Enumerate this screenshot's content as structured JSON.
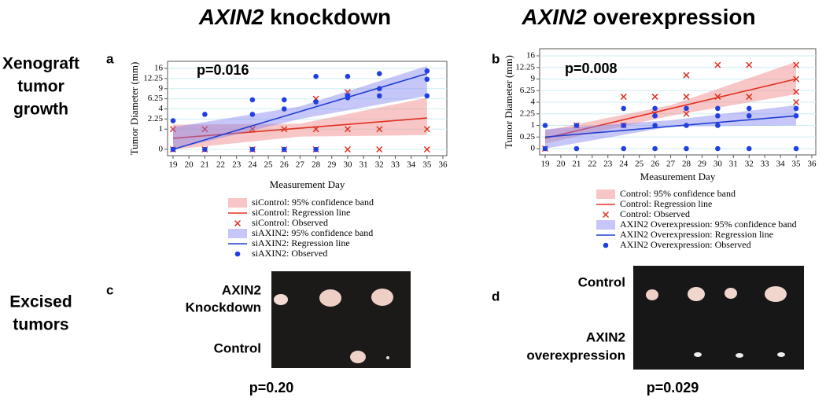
{
  "header": {
    "left": {
      "gene": "AXIN2",
      "rest": "knockdown"
    },
    "right": {
      "gene": "AXIN2",
      "rest": "overexpression"
    }
  },
  "row_labels": [
    [
      "Xenograft",
      "tumor",
      "growth"
    ],
    [
      "Excised",
      "tumors"
    ]
  ],
  "panels": [
    "a",
    "b",
    "c",
    "d"
  ],
  "photo_c": {
    "labels": [
      "AXIN2",
      "Knockdown",
      "Control"
    ],
    "p_value": "p=0.20"
  },
  "photo_d": {
    "labels": [
      "Control",
      "AXIN2",
      "overexpression"
    ],
    "p_value": "p=0.029"
  },
  "chart_data": [
    {
      "type": "scatter",
      "annotation": "p=0.016",
      "xlabel": "Measurement Day",
      "ylabel": "Tumor Diameter (mm)",
      "yscale": "sqrt",
      "grid": true,
      "xlim": [
        19,
        36
      ],
      "ylim": [
        0,
        16
      ],
      "xticks": [
        19,
        20,
        21,
        22,
        23,
        24,
        25,
        26,
        27,
        28,
        29,
        30,
        31,
        32,
        33,
        34,
        35,
        36
      ],
      "yticks": [
        0,
        1,
        2.25,
        4,
        6.25,
        9,
        12.25,
        16
      ],
      "series": [
        {
          "name": "siControl: 95% confidence band",
          "kind": "band",
          "color": "#f08080",
          "x": [
            19,
            27,
            35
          ],
          "lower": [
            0,
            0.4,
            0.5
          ],
          "upper": [
            1.5,
            1.6,
            6.5
          ]
        },
        {
          "name": "siControl: Regression line",
          "kind": "line",
          "color": "#e03020",
          "x": [
            19,
            35
          ],
          "values": [
            0.3,
            2.4
          ]
        },
        {
          "name": "siControl: Observed",
          "kind": "points",
          "marker": "x",
          "color": "#e03020",
          "x": [
            19,
            19,
            21,
            21,
            24,
            24,
            26,
            26,
            28,
            28,
            28,
            30,
            30,
            30,
            32,
            32,
            35,
            35
          ],
          "values": [
            1,
            0,
            1,
            0,
            1,
            0,
            1,
            0,
            1,
            0,
            6.25,
            1,
            0,
            8,
            1,
            0,
            1,
            0
          ]
        },
        {
          "name": "siAXIN2: 95% confidence band",
          "kind": "band",
          "color": "#8080f0",
          "x": [
            19,
            27,
            35
          ],
          "lower": [
            0,
            2.25,
            7
          ],
          "upper": [
            1.2,
            4.5,
            17
          ]
        },
        {
          "name": "siAXIN2: Regression line",
          "kind": "line",
          "color": "#2040d0",
          "x": [
            19,
            35
          ],
          "values": [
            0,
            14
          ]
        },
        {
          "name": "siAXIN2: Observed",
          "kind": "points",
          "marker": "circle",
          "color": "#2040e0",
          "x": [
            19,
            19,
            21,
            21,
            24,
            24,
            24,
            26,
            26,
            26,
            28,
            28,
            28,
            30,
            30,
            30,
            32,
            32,
            32,
            35,
            35,
            35
          ],
          "values": [
            2,
            0,
            3,
            0,
            6,
            3,
            0,
            6,
            4,
            0,
            13,
            5.5,
            0,
            13,
            6.5,
            7,
            14,
            9,
            7,
            15,
            12,
            7
          ]
        }
      ]
    },
    {
      "type": "scatter",
      "annotation": "p=0.008",
      "xlabel": "Measurement Day",
      "ylabel": "Tumor Diameter (mm)",
      "yscale": "sqrt",
      "grid": true,
      "xlim": [
        19,
        36
      ],
      "ylim": [
        0,
        16
      ],
      "xticks": [
        19,
        20,
        21,
        22,
        23,
        24,
        25,
        26,
        27,
        28,
        29,
        30,
        31,
        32,
        33,
        34,
        35,
        36
      ],
      "yticks": [
        0,
        0.25,
        1,
        2.25,
        4,
        6.25,
        9,
        12.25,
        16
      ],
      "series": [
        {
          "name": "Control: 95% confidence band",
          "kind": "band",
          "color": "#f08080",
          "x": [
            19,
            27,
            35
          ],
          "lower": [
            0.05,
            2,
            5.5
          ],
          "upper": [
            0.6,
            3.5,
            14
          ]
        },
        {
          "name": "Control: Regression line",
          "kind": "line",
          "color": "#e03020",
          "x": [
            19,
            35
          ],
          "values": [
            0.2,
            9
          ]
        },
        {
          "name": "Control: Observed",
          "kind": "points",
          "marker": "x",
          "color": "#e03020",
          "x": [
            19,
            21,
            24,
            24,
            26,
            26,
            28,
            28,
            28,
            30,
            30,
            32,
            32,
            35,
            35,
            35,
            35
          ],
          "values": [
            0,
            1,
            5,
            1,
            5,
            2.25,
            10,
            5,
            2.25,
            13,
            5,
            13,
            5,
            13,
            9,
            6,
            4
          ]
        },
        {
          "name": "AXIN2 Overexpression: 95% confidence band",
          "kind": "band",
          "color": "#8080f0",
          "x": [
            19,
            27,
            35
          ],
          "lower": [
            0,
            0.9,
            1
          ],
          "upper": [
            0.7,
            1.5,
            3.5
          ]
        },
        {
          "name": "AXIN2 Overexpression: Regression line",
          "kind": "line",
          "color": "#2040d0",
          "x": [
            19,
            35
          ],
          "values": [
            0.25,
            2
          ]
        },
        {
          "name": "AXIN2 Overexpression: Observed",
          "kind": "points",
          "marker": "circle",
          "color": "#2040e0",
          "x": [
            19,
            19,
            21,
            21,
            24,
            24,
            24,
            26,
            26,
            26,
            26,
            28,
            28,
            28,
            30,
            30,
            30,
            30,
            32,
            32,
            32,
            35,
            35,
            35
          ],
          "values": [
            1,
            0,
            1,
            0,
            3,
            1,
            0,
            3,
            2,
            1,
            0,
            3,
            1,
            0,
            3,
            2,
            1,
            0,
            3,
            2,
            0,
            3,
            2,
            0
          ]
        }
      ]
    }
  ]
}
